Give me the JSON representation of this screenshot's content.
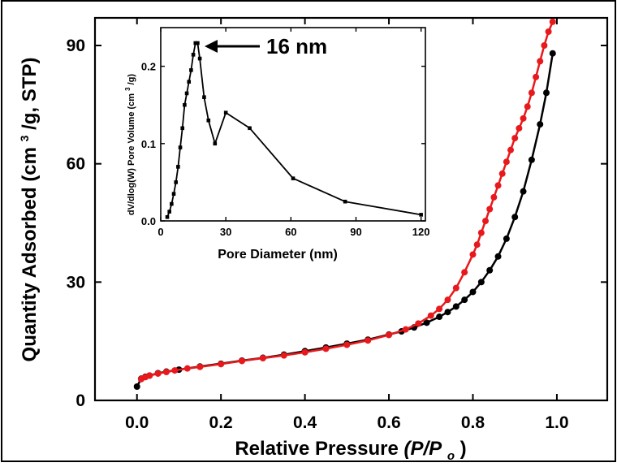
{
  "chart_data": [
    {
      "type": "line",
      "role": "main",
      "title": "",
      "xlabel": "Relative Pressure",
      "xlabel_var": "(P/P",
      "xlabel_sub": "o",
      "xlabel_close": ")",
      "ylabel": "Quantity Adsorbed (cm",
      "ylabel_sup": "3",
      "ylabel_end": "/g, STP)",
      "xlim": [
        -0.1,
        1.12
      ],
      "ylim": [
        0,
        97
      ],
      "xticks": [
        0.0,
        0.2,
        0.4,
        0.6,
        0.8,
        1.0
      ],
      "xtick_labels": [
        "0.0",
        "0.2",
        "0.4",
        "0.6",
        "0.8",
        "1.0"
      ],
      "yticks": [
        0,
        30,
        60,
        90
      ],
      "ytick_labels": [
        "0",
        "30",
        "60",
        "90"
      ],
      "grid": false,
      "series": [
        {
          "color": "#000000",
          "marker": "circle",
          "x": [
            0.0,
            0.01,
            0.02,
            0.03,
            0.05,
            0.07,
            0.1,
            0.15,
            0.2,
            0.25,
            0.3,
            0.35,
            0.4,
            0.45,
            0.5,
            0.55,
            0.6,
            0.63,
            0.66,
            0.69,
            0.72,
            0.74,
            0.76,
            0.78,
            0.8,
            0.82,
            0.84,
            0.86,
            0.88,
            0.9,
            0.92,
            0.94,
            0.96,
            0.975,
            0.99
          ],
          "y": [
            3.5,
            5.5,
            6.0,
            6.3,
            6.9,
            7.3,
            7.8,
            8.6,
            9.3,
            10.1,
            10.8,
            11.6,
            12.5,
            13.4,
            14.4,
            15.4,
            16.7,
            17.5,
            18.5,
            19.7,
            21.2,
            22.4,
            23.8,
            25.5,
            27.5,
            30.0,
            33.0,
            36.5,
            41.0,
            46.5,
            53.0,
            61.0,
            70.0,
            78.0,
            88.0
          ]
        },
        {
          "color": "#e8191c",
          "marker": "circle",
          "x": [
            0.99,
            0.98,
            0.97,
            0.96,
            0.95,
            0.94,
            0.93,
            0.92,
            0.91,
            0.9,
            0.89,
            0.88,
            0.87,
            0.86,
            0.85,
            0.84,
            0.83,
            0.82,
            0.81,
            0.8,
            0.78,
            0.76,
            0.74,
            0.72,
            0.7,
            0.67,
            0.64,
            0.6,
            0.55,
            0.5,
            0.45,
            0.4,
            0.35,
            0.3,
            0.25,
            0.2,
            0.15,
            0.12,
            0.09,
            0.07,
            0.05,
            0.03,
            0.02,
            0.01
          ],
          "y": [
            96.0,
            93.5,
            90.0,
            86.0,
            82.0,
            78.0,
            74.5,
            71.5,
            69.0,
            66.5,
            63.5,
            60.5,
            57.5,
            54.5,
            51.5,
            48.5,
            45.5,
            42.5,
            39.5,
            37.0,
            32.5,
            28.5,
            25.5,
            23.2,
            21.5,
            19.5,
            18.0,
            16.6,
            15.2,
            14.1,
            13.1,
            12.2,
            11.4,
            10.7,
            10.0,
            9.2,
            8.5,
            8.1,
            7.6,
            7.2,
            6.8,
            6.3,
            5.9,
            5.4
          ]
        }
      ]
    },
    {
      "type": "line",
      "role": "inset",
      "title": "",
      "xlabel": "Pore Diameter (nm)",
      "ylabel": "dV/dlog(W) Pore Volume (cm",
      "ylabel_sup": "3",
      "ylabel_end": "/g)",
      "xlim": [
        0,
        122
      ],
      "ylim": [
        0,
        0.25
      ],
      "xticks": [
        0,
        30,
        60,
        90,
        120
      ],
      "xtick_labels": [
        "0",
        "30",
        "60",
        "90",
        "120"
      ],
      "yticks": [
        0.0,
        0.1,
        0.2
      ],
      "ytick_labels": [
        "0.0",
        "0.1",
        "0.2"
      ],
      "grid": false,
      "annotation": {
        "text": "16 nm",
        "x": 16,
        "y": 0.23
      },
      "series": [
        {
          "color": "#000000",
          "marker": "square",
          "x": [
            3,
            4,
            5,
            6,
            7,
            8,
            9,
            10,
            11,
            12,
            13,
            14,
            15,
            16,
            17,
            18,
            20,
            22,
            25,
            30,
            41,
            61,
            85,
            120
          ],
          "y": [
            0.005,
            0.012,
            0.022,
            0.035,
            0.05,
            0.07,
            0.095,
            0.12,
            0.15,
            0.165,
            0.18,
            0.195,
            0.215,
            0.23,
            0.23,
            0.21,
            0.16,
            0.13,
            0.1,
            0.14,
            0.12,
            0.055,
            0.025,
            0.008
          ]
        }
      ]
    }
  ]
}
